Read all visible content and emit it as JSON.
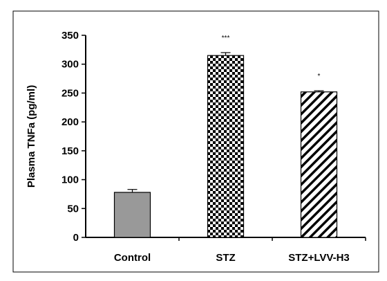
{
  "chart_data": {
    "type": "bar",
    "title": "",
    "xlabel": "",
    "ylabel": "Plasma TNFa (pg/ml)",
    "ylim": [
      0,
      350
    ],
    "yticks": [
      0,
      50,
      100,
      150,
      200,
      250,
      300,
      350
    ],
    "grid": false,
    "legend": "none",
    "categories": [
      "Control",
      "STZ",
      "STZ+LVV-H3"
    ],
    "values": [
      78,
      315,
      252
    ],
    "errors": [
      5,
      5,
      2
    ],
    "significance": [
      "",
      "***",
      "*"
    ],
    "bar_styles": [
      {
        "fill": "solid",
        "color": "#999999"
      },
      {
        "fill": "checker",
        "color": "#000000"
      },
      {
        "fill": "diagonal",
        "color": "#000000"
      }
    ]
  }
}
